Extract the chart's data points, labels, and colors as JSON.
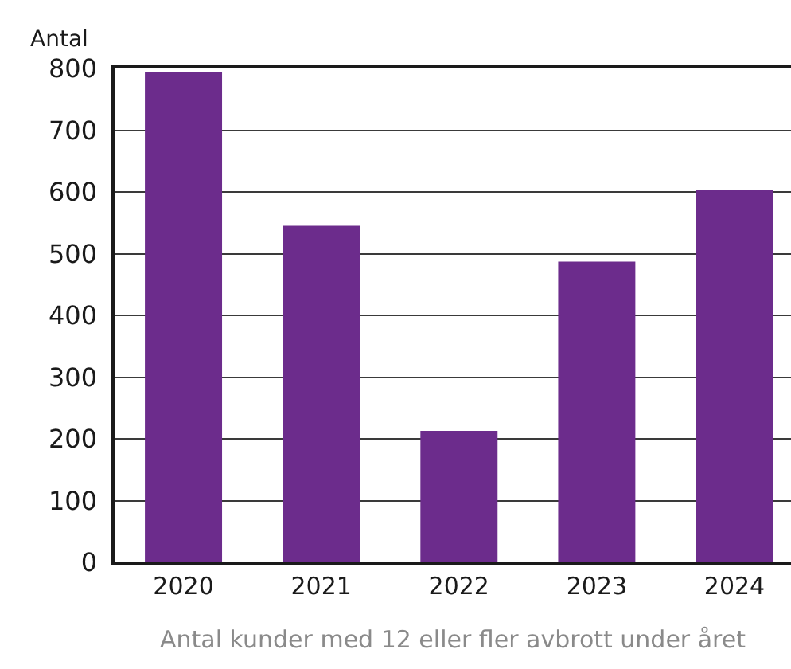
{
  "chart_data": {
    "type": "bar",
    "ylabel": "Antal",
    "xlabel": "Antal kunder med 12 eller fler avbrott under året",
    "categories": [
      "2020",
      "2021",
      "2022",
      "2023",
      "2024"
    ],
    "values": [
      795,
      545,
      213,
      487,
      603
    ],
    "color": "#6c2c8c",
    "ylim": [
      0,
      800
    ],
    "yticks": [
      0,
      100,
      200,
      300,
      400,
      500,
      600,
      700,
      800
    ],
    "grid": "y"
  }
}
